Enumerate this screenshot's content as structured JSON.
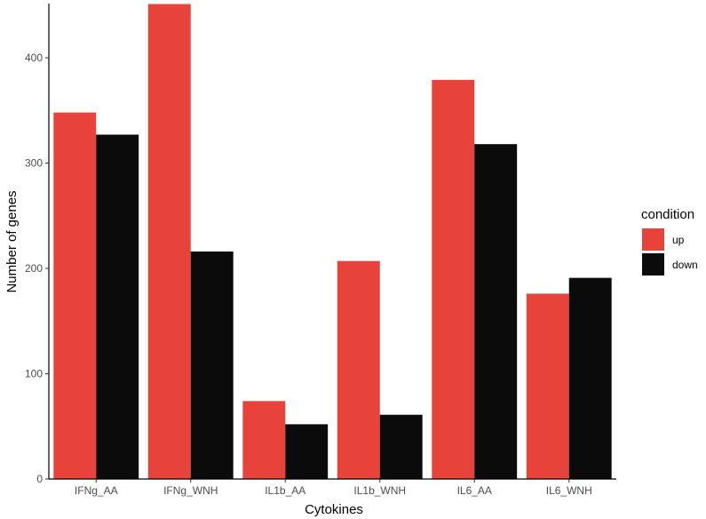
{
  "chart_data": {
    "type": "bar",
    "title": "",
    "xlabel": "Cytokines",
    "ylabel": "Number of genes",
    "categories": [
      "IFNg_AA",
      "IFNg_WNH",
      "IL1b_AA",
      "IL1b_WNH",
      "IL6_AA",
      "IL6_WNH"
    ],
    "series": [
      {
        "name": "up",
        "color": "#E8433A",
        "values": [
          348,
          451,
          74,
          207,
          379,
          176
        ]
      },
      {
        "name": "down",
        "color": "#0B0B0B",
        "values": [
          327,
          216,
          52,
          61,
          318,
          191
        ]
      }
    ],
    "yticks": [
      0,
      100,
      200,
      300,
      400
    ],
    "ylim": [
      0,
      451
    ],
    "grid": false,
    "legend": {
      "title": "condition",
      "position": "right",
      "entries": [
        "up",
        "down"
      ]
    }
  }
}
